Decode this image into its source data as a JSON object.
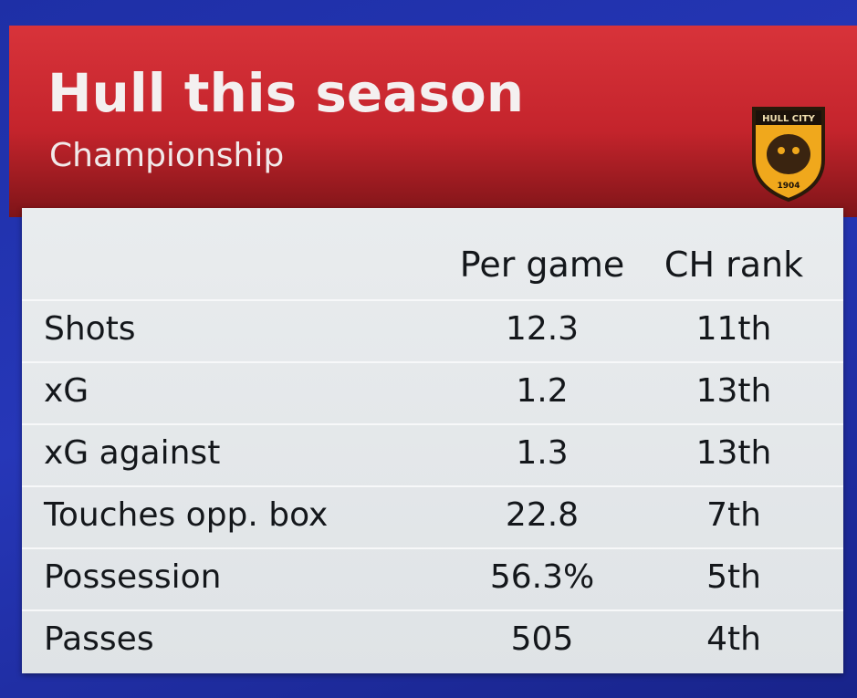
{
  "header": {
    "title": "Hull this season",
    "subtitle": "Championship",
    "badge": {
      "name": "HULL CITY",
      "year": "1904"
    }
  },
  "table": {
    "columns": [
      "Per game",
      "CH rank"
    ],
    "rows": [
      [
        "Shots",
        "12.3",
        "11th"
      ],
      [
        "xG",
        "1.2",
        "13th"
      ],
      [
        "xG against",
        "1.3",
        "13th"
      ],
      [
        "Touches opp. box",
        "22.8",
        "7th"
      ],
      [
        "Possession",
        "56.3%",
        "5th"
      ],
      [
        "Passes",
        "505",
        "4th"
      ]
    ]
  }
}
